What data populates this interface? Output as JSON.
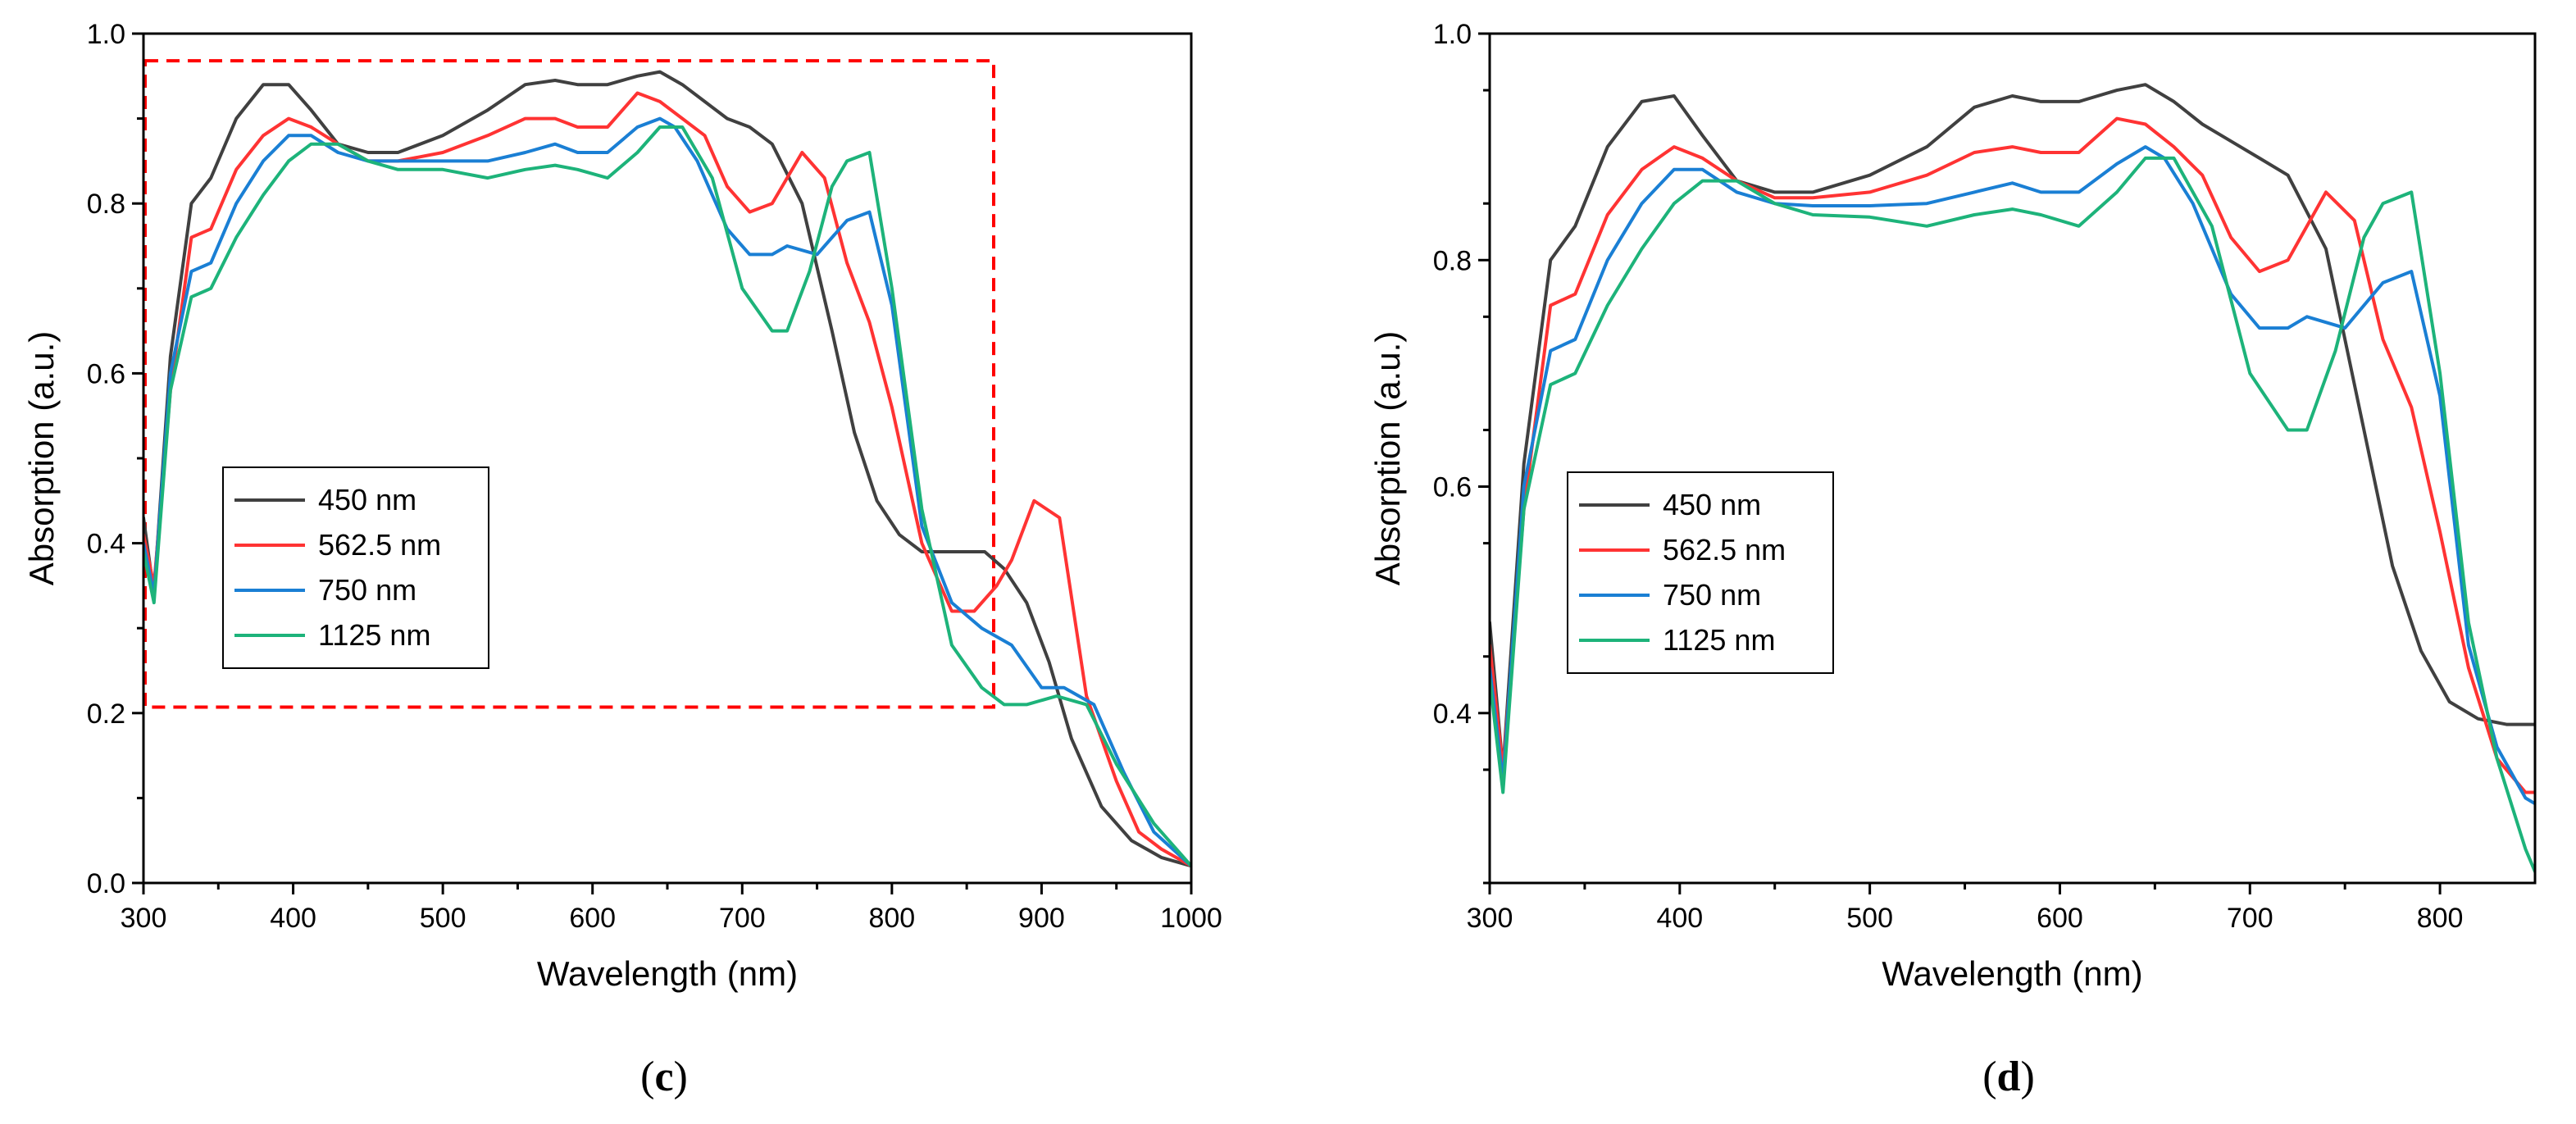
{
  "chart_data": [
    {
      "type": "line",
      "panel": "c",
      "caption_open": "(",
      "caption_letter": "c",
      "caption_close": ")",
      "title": "",
      "xlabel": "Wavelength (nm)",
      "ylabel": "Absorption (a.u.)",
      "xlim": [
        300,
        1000
      ],
      "ylim": [
        0.0,
        1.0
      ],
      "xticks": [
        300,
        400,
        500,
        600,
        700,
        800,
        900,
        1000
      ],
      "yticks": [
        0.0,
        0.2,
        0.4,
        0.6,
        0.8,
        1.0
      ],
      "xtick_labels": [
        "300",
        "400",
        "500",
        "600",
        "700",
        "800",
        "900",
        "1000"
      ],
      "ytick_labels": [
        "0.0",
        "0.2",
        "0.4",
        "0.6",
        "0.8",
        "1.0"
      ],
      "legend": "center-left",
      "zoom_box": {
        "x": [
          300,
          868
        ],
        "y": [
          0.207,
          0.968
        ],
        "color": "#ff0000"
      },
      "series": [
        {
          "name": "450 nm",
          "color": "#404040",
          "x": [
            300,
            307,
            318,
            332,
            345,
            362,
            380,
            397,
            412,
            430,
            450,
            470,
            500,
            530,
            555,
            575,
            590,
            610,
            630,
            645,
            660,
            675,
            690,
            705,
            720,
            740,
            760,
            775,
            790,
            805,
            820,
            840,
            850,
            862,
            875,
            890,
            905,
            920,
            940,
            960,
            980,
            1000
          ],
          "y": [
            0.43,
            0.34,
            0.62,
            0.8,
            0.83,
            0.9,
            0.94,
            0.94,
            0.91,
            0.87,
            0.86,
            0.86,
            0.88,
            0.91,
            0.94,
            0.945,
            0.94,
            0.94,
            0.95,
            0.955,
            0.94,
            0.92,
            0.9,
            0.89,
            0.87,
            0.8,
            0.65,
            0.53,
            0.45,
            0.41,
            0.39,
            0.39,
            0.39,
            0.39,
            0.37,
            0.33,
            0.26,
            0.17,
            0.09,
            0.05,
            0.03,
            0.02
          ]
        },
        {
          "name": "562.5 nm",
          "color": "#ff3333",
          "x": [
            300,
            307,
            318,
            332,
            345,
            362,
            380,
            397,
            412,
            430,
            450,
            470,
            500,
            530,
            555,
            575,
            590,
            610,
            630,
            645,
            660,
            675,
            690,
            705,
            720,
            740,
            755,
            770,
            785,
            800,
            820,
            840,
            855,
            870,
            880,
            895,
            912,
            930,
            950,
            965,
            980,
            1000
          ],
          "y": [
            0.41,
            0.35,
            0.58,
            0.76,
            0.77,
            0.84,
            0.88,
            0.9,
            0.89,
            0.87,
            0.85,
            0.85,
            0.86,
            0.88,
            0.9,
            0.9,
            0.89,
            0.89,
            0.93,
            0.92,
            0.9,
            0.88,
            0.82,
            0.79,
            0.8,
            0.86,
            0.83,
            0.73,
            0.66,
            0.56,
            0.4,
            0.32,
            0.32,
            0.35,
            0.38,
            0.45,
            0.43,
            0.22,
            0.12,
            0.06,
            0.04,
            0.02
          ]
        },
        {
          "name": "750 nm",
          "color": "#1a7fd4",
          "x": [
            300,
            307,
            318,
            332,
            345,
            362,
            380,
            397,
            412,
            430,
            450,
            470,
            500,
            530,
            555,
            575,
            590,
            610,
            630,
            645,
            655,
            670,
            690,
            705,
            720,
            730,
            750,
            770,
            785,
            800,
            820,
            840,
            860,
            880,
            900,
            915,
            935,
            955,
            975,
            1000
          ],
          "y": [
            0.4,
            0.34,
            0.6,
            0.72,
            0.73,
            0.8,
            0.85,
            0.88,
            0.88,
            0.86,
            0.85,
            0.85,
            0.85,
            0.85,
            0.86,
            0.87,
            0.86,
            0.86,
            0.89,
            0.9,
            0.89,
            0.85,
            0.77,
            0.74,
            0.74,
            0.75,
            0.74,
            0.78,
            0.79,
            0.68,
            0.42,
            0.33,
            0.3,
            0.28,
            0.23,
            0.23,
            0.21,
            0.13,
            0.06,
            0.02
          ]
        },
        {
          "name": "1125 nm",
          "color": "#1db37a",
          "x": [
            300,
            307,
            318,
            332,
            345,
            362,
            380,
            397,
            412,
            430,
            450,
            470,
            500,
            530,
            555,
            575,
            590,
            610,
            630,
            645,
            660,
            680,
            700,
            720,
            730,
            745,
            760,
            770,
            785,
            800,
            820,
            840,
            860,
            875,
            890,
            910,
            930,
            950,
            975,
            1000
          ],
          "y": [
            0.39,
            0.33,
            0.58,
            0.69,
            0.7,
            0.76,
            0.81,
            0.85,
            0.87,
            0.87,
            0.85,
            0.84,
            0.84,
            0.83,
            0.84,
            0.845,
            0.84,
            0.83,
            0.86,
            0.89,
            0.89,
            0.83,
            0.7,
            0.65,
            0.65,
            0.72,
            0.82,
            0.85,
            0.86,
            0.7,
            0.44,
            0.28,
            0.23,
            0.21,
            0.21,
            0.22,
            0.21,
            0.14,
            0.07,
            0.02
          ]
        }
      ]
    },
    {
      "type": "line",
      "panel": "d",
      "caption_open": "(",
      "caption_letter": "d",
      "caption_close": ")",
      "title": "",
      "xlabel": "Wavelength (nm)",
      "ylabel": "Absorption (a.u.)",
      "xlim": [
        300,
        850
      ],
      "ylim": [
        0.25,
        1.0
      ],
      "xticks": [
        300,
        400,
        500,
        600,
        700,
        800
      ],
      "yticks": [
        0.4,
        0.6,
        0.8,
        1.0
      ],
      "xtick_labels": [
        "300",
        "400",
        "500",
        "600",
        "700",
        "800"
      ],
      "ytick_labels": [
        "0.4",
        "0.6",
        "0.8",
        "1.0"
      ],
      "legend": "center-left",
      "series": [
        {
          "name": "450 nm",
          "color": "#404040",
          "x": [
            300,
            307,
            318,
            332,
            345,
            362,
            380,
            397,
            412,
            430,
            450,
            470,
            500,
            530,
            555,
            575,
            590,
            610,
            630,
            645,
            660,
            675,
            690,
            705,
            720,
            740,
            760,
            775,
            790,
            805,
            820,
            835,
            850
          ],
          "y": [
            0.48,
            0.35,
            0.62,
            0.8,
            0.83,
            0.9,
            0.94,
            0.945,
            0.91,
            0.87,
            0.86,
            0.86,
            0.875,
            0.9,
            0.935,
            0.945,
            0.94,
            0.94,
            0.95,
            0.955,
            0.94,
            0.92,
            0.905,
            0.89,
            0.875,
            0.81,
            0.65,
            0.53,
            0.455,
            0.41,
            0.395,
            0.39,
            0.39
          ]
        },
        {
          "name": "562.5 nm",
          "color": "#ff3333",
          "x": [
            300,
            307,
            318,
            332,
            345,
            362,
            380,
            397,
            412,
            430,
            450,
            470,
            500,
            530,
            555,
            575,
            590,
            610,
            630,
            645,
            660,
            675,
            690,
            705,
            720,
            740,
            755,
            770,
            785,
            800,
            815,
            830,
            845,
            850
          ],
          "y": [
            0.46,
            0.35,
            0.58,
            0.76,
            0.77,
            0.84,
            0.88,
            0.9,
            0.89,
            0.87,
            0.855,
            0.855,
            0.86,
            0.875,
            0.895,
            0.9,
            0.895,
            0.895,
            0.925,
            0.92,
            0.9,
            0.875,
            0.82,
            0.79,
            0.8,
            0.86,
            0.835,
            0.73,
            0.67,
            0.56,
            0.44,
            0.36,
            0.33,
            0.33
          ]
        },
        {
          "name": "750 nm",
          "color": "#1a7fd4",
          "x": [
            300,
            307,
            318,
            332,
            345,
            362,
            380,
            397,
            412,
            430,
            450,
            470,
            500,
            530,
            555,
            575,
            590,
            610,
            630,
            645,
            655,
            670,
            690,
            705,
            720,
            730,
            750,
            770,
            785,
            800,
            815,
            830,
            845,
            850
          ],
          "y": [
            0.44,
            0.34,
            0.6,
            0.72,
            0.73,
            0.8,
            0.85,
            0.88,
            0.88,
            0.86,
            0.85,
            0.848,
            0.848,
            0.85,
            0.86,
            0.868,
            0.86,
            0.86,
            0.885,
            0.9,
            0.89,
            0.85,
            0.77,
            0.74,
            0.74,
            0.75,
            0.74,
            0.78,
            0.79,
            0.68,
            0.46,
            0.37,
            0.325,
            0.32
          ]
        },
        {
          "name": "1125 nm",
          "color": "#1db37a",
          "x": [
            300,
            307,
            318,
            332,
            345,
            362,
            380,
            397,
            412,
            430,
            450,
            470,
            500,
            530,
            555,
            575,
            590,
            610,
            630,
            645,
            660,
            680,
            700,
            720,
            730,
            745,
            760,
            770,
            785,
            800,
            815,
            830,
            845,
            850
          ],
          "y": [
            0.43,
            0.33,
            0.58,
            0.69,
            0.7,
            0.76,
            0.81,
            0.85,
            0.87,
            0.87,
            0.85,
            0.84,
            0.838,
            0.83,
            0.84,
            0.845,
            0.84,
            0.83,
            0.86,
            0.89,
            0.89,
            0.83,
            0.7,
            0.65,
            0.65,
            0.72,
            0.82,
            0.85,
            0.86,
            0.7,
            0.48,
            0.36,
            0.28,
            0.26
          ]
        }
      ]
    }
  ]
}
